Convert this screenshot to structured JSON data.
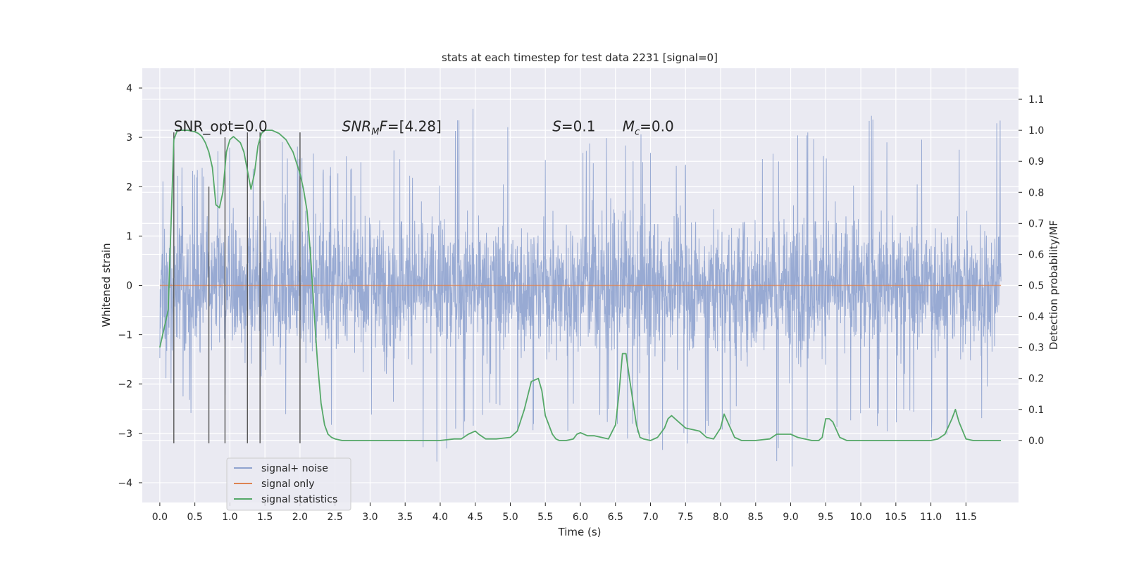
{
  "chart_data": {
    "type": "line",
    "title": "stats at each timestep for test data 2231 [signal=0]",
    "xlabel": "Time (s)",
    "ylabel_left": "Whitened strain",
    "ylabel_right": "Detection probability/MF",
    "xlim": [
      -0.25,
      12.25
    ],
    "ylim_left": [
      -4.4,
      4.4
    ],
    "ylim_right": [
      -0.2,
      1.2
    ],
    "x_ticks": [
      0.0,
      0.5,
      1.0,
      1.5,
      2.0,
      2.5,
      3.0,
      3.5,
      4.0,
      4.5,
      5.0,
      5.5,
      6.0,
      6.5,
      7.0,
      7.5,
      8.0,
      8.5,
      9.0,
      9.5,
      10.0,
      10.5,
      11.0,
      11.5
    ],
    "x_tick_labels": [
      "0.0",
      "0.5",
      "1.0",
      "1.5",
      "2.0",
      "2.5",
      "3.0",
      "3.5",
      "4.0",
      "4.5",
      "5.0",
      "5.5",
      "6.0",
      "6.5",
      "7.0",
      "7.5",
      "8.0",
      "8.5",
      "9.0",
      "9.5",
      "10.0",
      "10.5",
      "11.0",
      "11.5"
    ],
    "y_ticks_left": [
      -4,
      -3,
      -2,
      -1,
      0,
      1,
      2,
      3,
      4
    ],
    "y_tick_labels_left": [
      "−4",
      "−3",
      "−2",
      "−1",
      "0",
      "1",
      "2",
      "3",
      "4"
    ],
    "y_ticks_right": [
      0.0,
      0.1,
      0.2,
      0.3,
      0.4,
      0.5,
      0.6,
      0.7,
      0.8,
      0.9,
      1.0,
      1.1
    ],
    "y_tick_labels_right": [
      "0.0",
      "0.1",
      "0.2",
      "0.3",
      "0.4",
      "0.5",
      "0.6",
      "0.7",
      "0.8",
      "0.9",
      "1.0",
      "1.1"
    ],
    "grid": true,
    "legend_position": "lower-left",
    "annotations": [
      {
        "x": 0.2,
        "y": 3.12,
        "parts": [
          {
            "t": "SNR_opt=0.0"
          }
        ]
      },
      {
        "x": 2.6,
        "y": 3.12,
        "parts": [
          {
            "t": "SNR",
            "i": true
          },
          {
            "t": "M",
            "i": true,
            "sub": true
          },
          {
            "t": "F",
            "i": true
          },
          {
            "t": "=[4.28]"
          }
        ]
      },
      {
        "x": 5.6,
        "y": 3.12,
        "parts": [
          {
            "t": "S",
            "i": true
          },
          {
            "t": "=0.1"
          }
        ]
      },
      {
        "x": 6.6,
        "y": 3.12,
        "parts": [
          {
            "t": "M",
            "i": true
          },
          {
            "t": "c",
            "i": true,
            "sub": true
          },
          {
            "t": "=0.0"
          }
        ]
      }
    ],
    "series": [
      {
        "name": "signal+ noise",
        "axis": "left",
        "color": "#8fa3cf",
        "x_start": 0.0,
        "x_end": 12.0,
        "envelope_x": [
          0.0,
          0.5,
          1.0,
          1.5,
          2.0,
          2.5,
          3.0,
          3.5,
          4.0,
          4.5,
          5.0,
          5.5,
          6.0,
          6.5,
          7.0,
          7.5,
          8.0,
          8.5,
          9.0,
          9.5,
          10.0,
          10.5,
          11.0,
          11.5,
          12.0
        ],
        "envelope_upper": [
          2.5,
          2.6,
          2.8,
          3.0,
          2.9,
          2.4,
          3.1,
          2.7,
          2.8,
          4.0,
          3.2,
          3.0,
          2.9,
          3.1,
          3.1,
          3.0,
          3.1,
          3.0,
          3.2,
          3.2,
          3.7,
          3.0,
          3.0,
          3.3,
          3.6
        ],
        "envelope_lower": [
          -2.0,
          -2.7,
          -2.6,
          -3.6,
          -2.8,
          -2.9,
          -2.7,
          -2.7,
          -3.9,
          -2.8,
          -3.0,
          -3.3,
          -2.9,
          -3.0,
          -3.4,
          -3.3,
          -3.0,
          -2.9,
          -4.1,
          -2.9,
          -2.9,
          -3.0,
          -3.2,
          -3.4,
          -2.0
        ]
      },
      {
        "name": "signal only",
        "axis": "left",
        "color": "#dd8452",
        "x": [
          0.0,
          12.0
        ],
        "y": [
          0.0,
          0.0
        ]
      },
      {
        "name": "signal statistics",
        "axis": "right",
        "color": "#55a868",
        "x": [
          0.0,
          0.12,
          0.2,
          0.25,
          0.3,
          0.4,
          0.5,
          0.55,
          0.6,
          0.65,
          0.7,
          0.75,
          0.8,
          0.85,
          0.9,
          0.95,
          1.0,
          1.05,
          1.1,
          1.15,
          1.2,
          1.25,
          1.3,
          1.35,
          1.4,
          1.45,
          1.5,
          1.55,
          1.6,
          1.7,
          1.8,
          1.9,
          2.0,
          2.05,
          2.1,
          2.15,
          2.2,
          2.25,
          2.3,
          2.35,
          2.4,
          2.45,
          2.5,
          2.6,
          3.0,
          3.5,
          4.0,
          4.2,
          4.3,
          4.4,
          4.5,
          4.55,
          4.65,
          4.8,
          5.0,
          5.1,
          5.2,
          5.3,
          5.4,
          5.45,
          5.5,
          5.6,
          5.65,
          5.7,
          5.8,
          5.9,
          5.95,
          6.0,
          6.1,
          6.2,
          6.3,
          6.4,
          6.5,
          6.55,
          6.6,
          6.65,
          6.7,
          6.8,
          6.85,
          6.9,
          7.0,
          7.1,
          7.2,
          7.25,
          7.3,
          7.4,
          7.5,
          7.6,
          7.7,
          7.8,
          7.9,
          8.0,
          8.05,
          8.1,
          8.2,
          8.3,
          8.5,
          8.7,
          8.8,
          8.9,
          9.0,
          9.1,
          9.2,
          9.3,
          9.4,
          9.45,
          9.5,
          9.55,
          9.6,
          9.7,
          9.8,
          10.0,
          10.5,
          11.0,
          11.1,
          11.2,
          11.3,
          11.35,
          11.4,
          11.5,
          11.6,
          12.0
        ],
        "y": [
          0.3,
          0.42,
          0.97,
          1.0,
          1.0,
          1.0,
          0.995,
          0.99,
          0.98,
          0.96,
          0.93,
          0.88,
          0.76,
          0.75,
          0.8,
          0.93,
          0.97,
          0.98,
          0.97,
          0.96,
          0.93,
          0.87,
          0.81,
          0.86,
          0.95,
          0.99,
          1.0,
          1.0,
          1.0,
          0.99,
          0.97,
          0.93,
          0.86,
          0.81,
          0.74,
          0.6,
          0.42,
          0.25,
          0.12,
          0.05,
          0.02,
          0.01,
          0.005,
          0.0,
          0.0,
          0.0,
          0.0,
          0.005,
          0.005,
          0.02,
          0.03,
          0.02,
          0.005,
          0.005,
          0.01,
          0.03,
          0.1,
          0.19,
          0.2,
          0.16,
          0.08,
          0.02,
          0.005,
          0.0,
          0.0,
          0.005,
          0.02,
          0.025,
          0.015,
          0.015,
          0.01,
          0.005,
          0.05,
          0.15,
          0.28,
          0.28,
          0.2,
          0.05,
          0.01,
          0.005,
          0.0,
          0.01,
          0.04,
          0.07,
          0.08,
          0.06,
          0.04,
          0.035,
          0.03,
          0.01,
          0.005,
          0.04,
          0.085,
          0.06,
          0.01,
          0.0,
          0.0,
          0.005,
          0.02,
          0.02,
          0.02,
          0.01,
          0.005,
          0.0,
          0.0,
          0.01,
          0.07,
          0.07,
          0.06,
          0.01,
          0.0,
          0.0,
          0.0,
          0.0,
          0.005,
          0.02,
          0.07,
          0.1,
          0.06,
          0.005,
          0.0,
          0.0
        ]
      }
    ],
    "vertical_markers": {
      "color": "#555555",
      "x": [
        0.2,
        0.7,
        0.93,
        1.25,
        1.43,
        2.0
      ],
      "y_top_left": [
        3.1,
        2.0,
        3.0,
        3.1,
        3.1,
        3.1
      ],
      "y_bottom_left": -3.2
    }
  }
}
